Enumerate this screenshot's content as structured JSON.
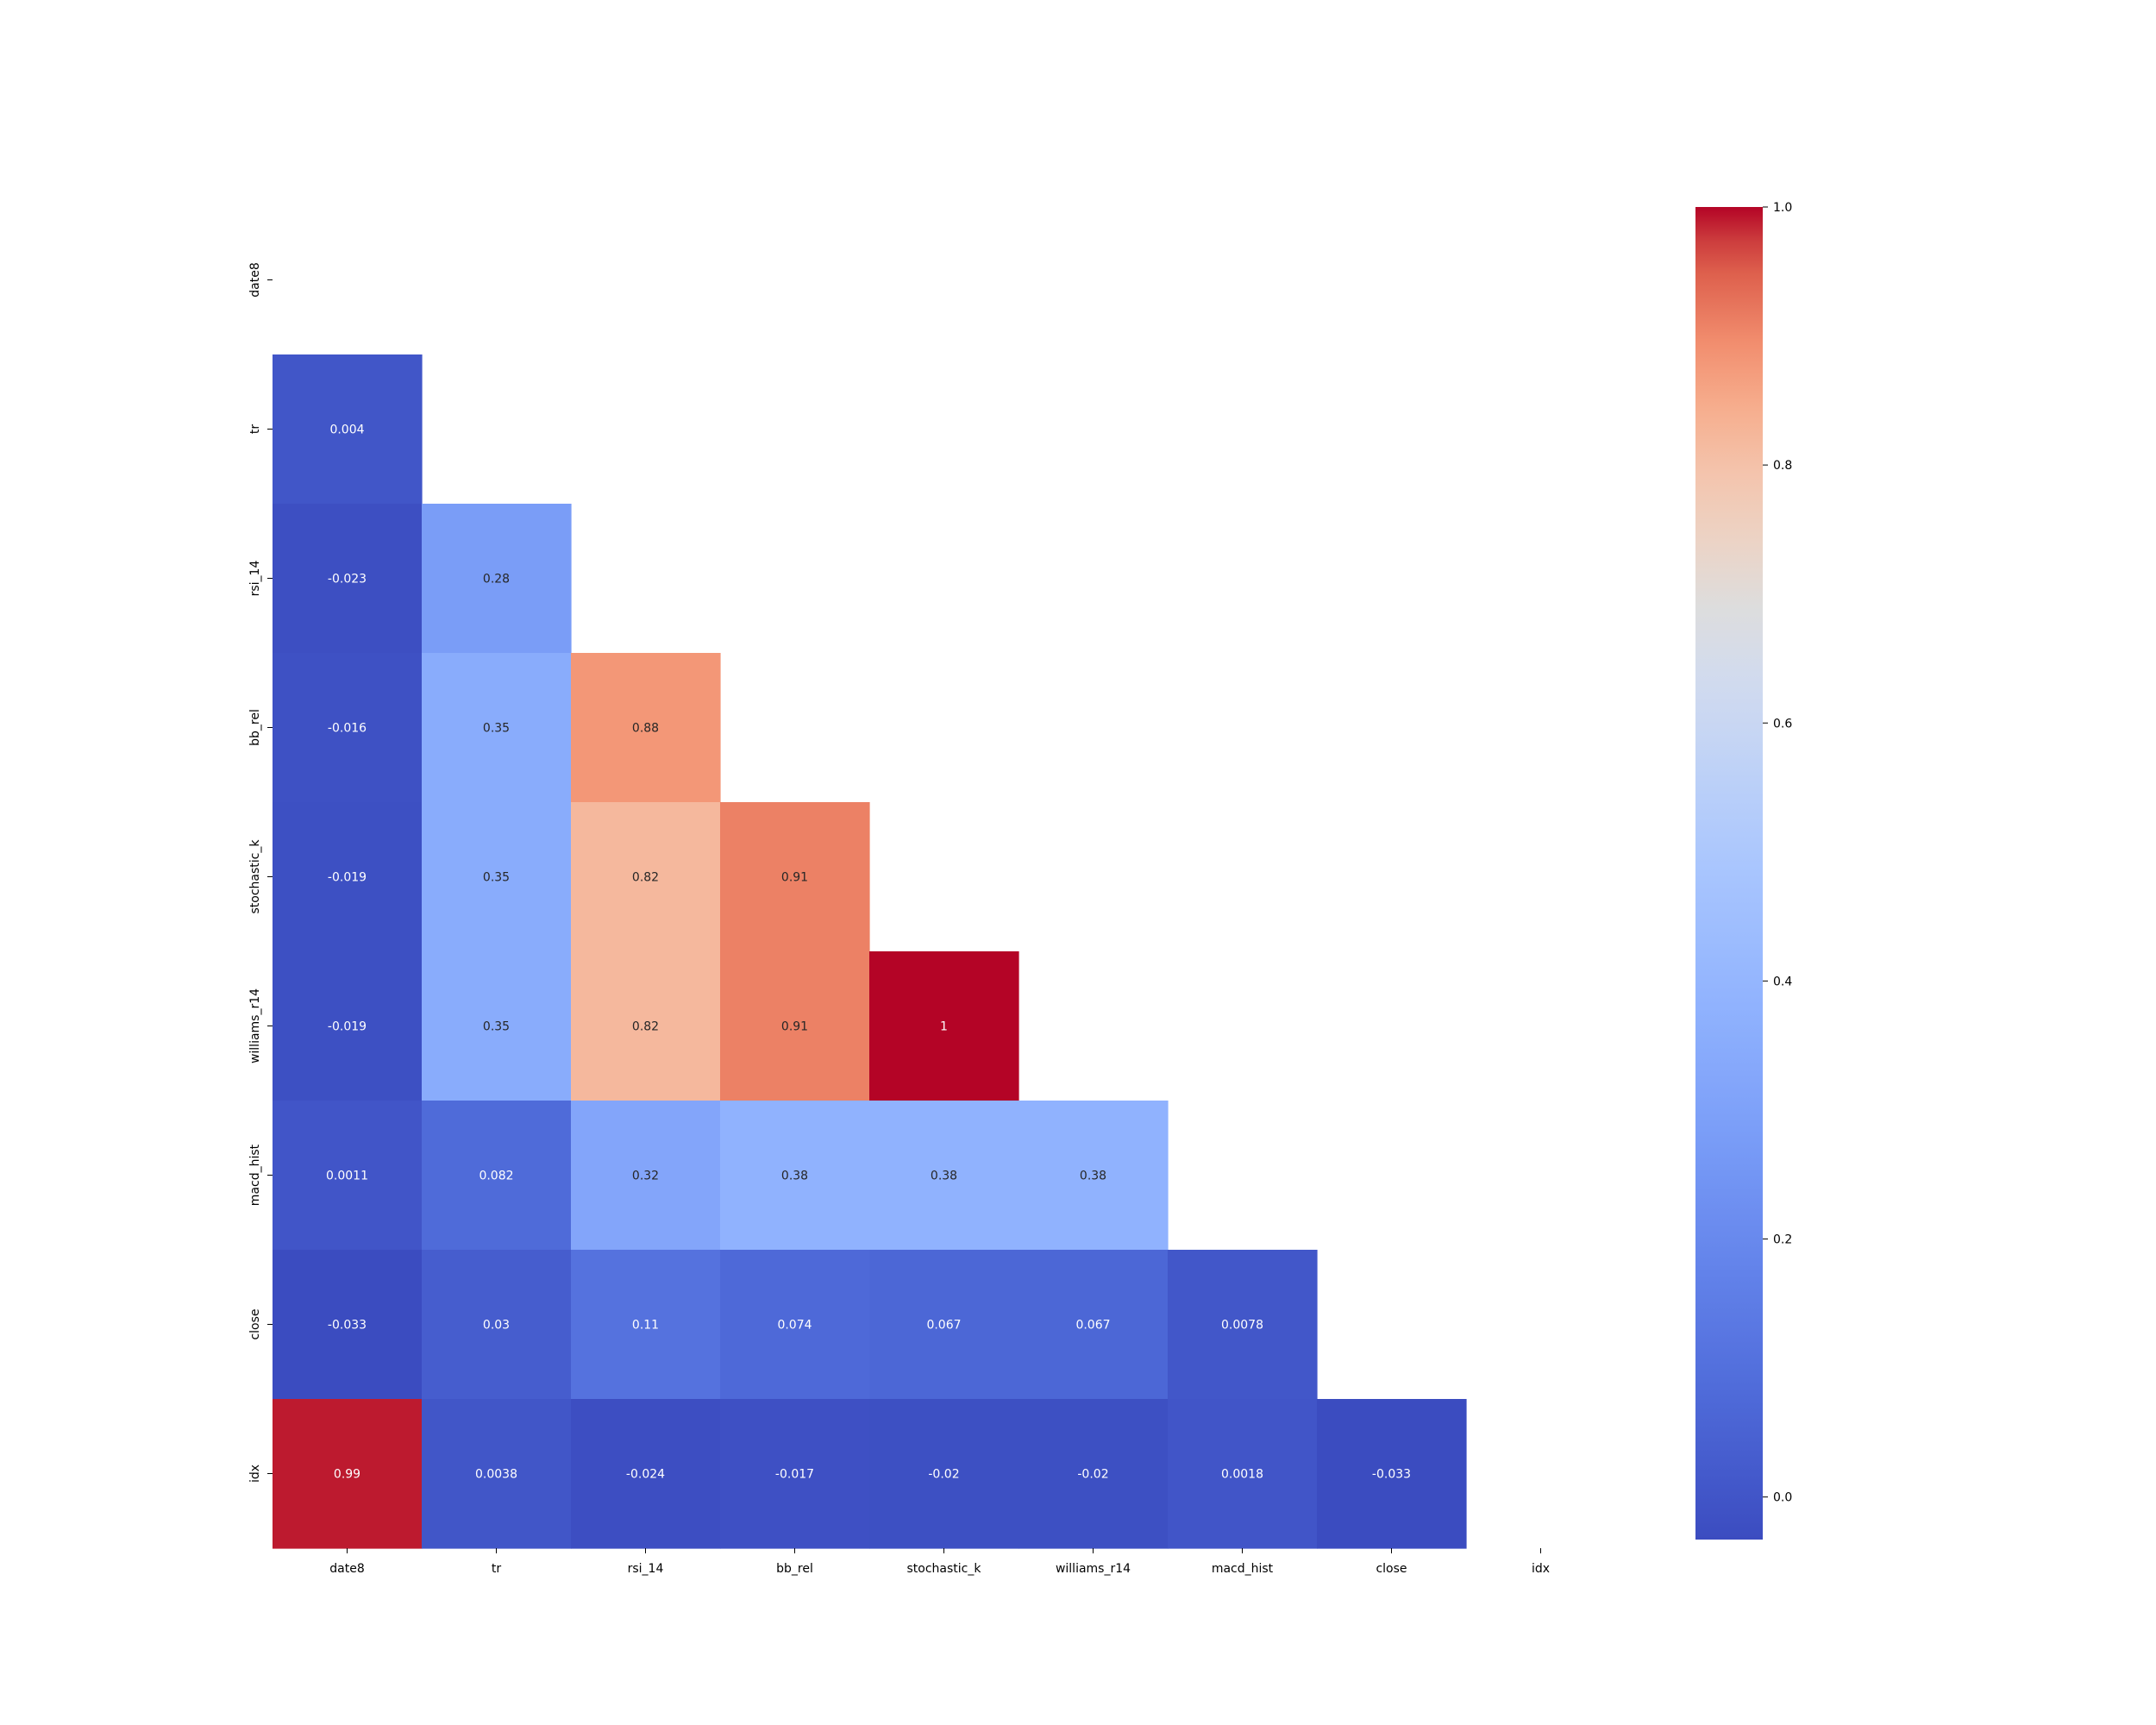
{
  "chart_data": {
    "type": "heatmap",
    "title": "",
    "xlabel": "",
    "ylabel": "",
    "colormap": "coolwarm",
    "mask": "upper-triangle-including-diagonal",
    "grid": false,
    "legend": "colorbar-right",
    "x_labels": [
      "date8",
      "tr",
      "rsi_14",
      "bb_rel",
      "stochastic_k",
      "williams_r14",
      "macd_hist",
      "close",
      "idx"
    ],
    "y_labels": [
      "date8",
      "tr",
      "rsi_14",
      "bb_rel",
      "stochastic_k",
      "williams_r14",
      "macd_hist",
      "close",
      "idx"
    ],
    "values": [
      [
        null,
        null,
        null,
        null,
        null,
        null,
        null,
        null,
        null
      ],
      [
        0.004,
        null,
        null,
        null,
        null,
        null,
        null,
        null,
        null
      ],
      [
        -0.023,
        0.28,
        null,
        null,
        null,
        null,
        null,
        null,
        null
      ],
      [
        -0.016,
        0.35,
        0.88,
        null,
        null,
        null,
        null,
        null,
        null
      ],
      [
        -0.019,
        0.35,
        0.82,
        0.91,
        null,
        null,
        null,
        null,
        null
      ],
      [
        -0.019,
        0.35,
        0.82,
        0.91,
        1,
        null,
        null,
        null,
        null
      ],
      [
        0.0011,
        0.082,
        0.32,
        0.38,
        0.38,
        0.38,
        null,
        null,
        null
      ],
      [
        -0.033,
        0.03,
        0.11,
        0.074,
        0.067,
        0.067,
        0.0078,
        null,
        null
      ],
      [
        0.99,
        0.0038,
        -0.024,
        -0.017,
        -0.02,
        -0.02,
        0.0018,
        -0.033,
        null
      ]
    ],
    "labels": [
      [
        null,
        null,
        null,
        null,
        null,
        null,
        null,
        null,
        null
      ],
      [
        "0.004",
        null,
        null,
        null,
        null,
        null,
        null,
        null,
        null
      ],
      [
        "-0.023",
        "0.28",
        null,
        null,
        null,
        null,
        null,
        null,
        null
      ],
      [
        "-0.016",
        "0.35",
        "0.88",
        null,
        null,
        null,
        null,
        null,
        null
      ],
      [
        "-0.019",
        "0.35",
        "0.82",
        "0.91",
        null,
        null,
        null,
        null,
        null
      ],
      [
        "-0.019",
        "0.35",
        "0.82",
        "0.91",
        "1",
        null,
        null,
        null,
        null
      ],
      [
        "0.0011",
        "0.082",
        "0.32",
        "0.38",
        "0.38",
        "0.38",
        null,
        null,
        null
      ],
      [
        "-0.033",
        "0.03",
        "0.11",
        "0.074",
        "0.067",
        "0.067",
        "0.0078",
        null,
        null
      ],
      [
        "0.99",
        "0.0038",
        "-0.024",
        "-0.017",
        "-0.02",
        "-0.02",
        "0.0018",
        "-0.033",
        null
      ]
    ],
    "colorbar": {
      "vmin": -0.033,
      "vmax": 1.0,
      "ticks": [
        0.0,
        0.2,
        0.4,
        0.6,
        0.8,
        1.0
      ],
      "tick_labels": [
        "0.0",
        "0.2",
        "0.4",
        "0.6",
        "0.8",
        "1.0"
      ]
    }
  }
}
